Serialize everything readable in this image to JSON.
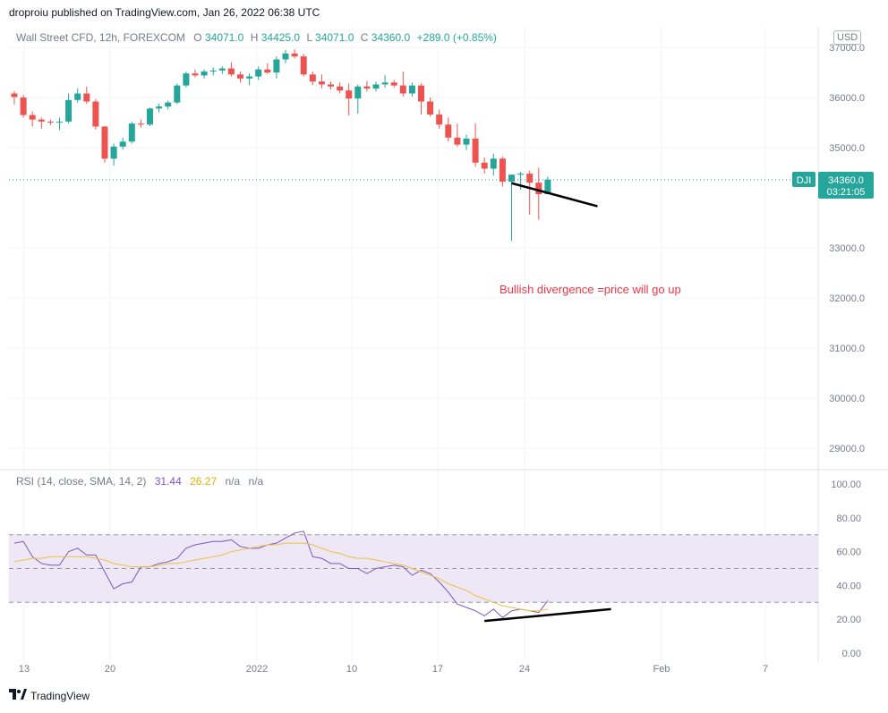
{
  "header": {
    "attribution": "droproiu published on TradingView.com, Jan 26, 2022 06:38 UTC"
  },
  "legend": {
    "symbol": "Wall Street CFD, 12h, FOREXCOM",
    "open_label": "O",
    "open": "34071.0",
    "high_label": "H",
    "high": "34425.0",
    "low_label": "L",
    "low": "34071.0",
    "close_label": "C",
    "close": "34360.0",
    "change": "+289.0 (+0.85%)"
  },
  "currency_badge": "USD",
  "price_tag": {
    "symbol": "DJI",
    "price": "34360.0",
    "countdown": "03:21:05"
  },
  "annotation": "Bullish divergence =price will go up",
  "rsi_legend": {
    "label": "RSI (14, close, SMA, 14, 2)",
    "rsi_value": "31.44",
    "sma_value": "26.27",
    "na1": "n/a",
    "na2": "n/a"
  },
  "footer": {
    "brand": "TradingView"
  },
  "colors": {
    "up": "#26a69a",
    "down": "#ef5350",
    "rsi": "#7e57c2",
    "rsi_sma": "#f0c040",
    "rsi_band": "#ede7f6",
    "annotation": "#f23645",
    "grid": "#f0f3fa"
  },
  "chart_data": [
    {
      "type": "candlestick",
      "title": "Wall Street CFD, 12h, FOREXCOM",
      "x_ticks": [
        "13",
        "20",
        "2022",
        "10",
        "17",
        "24",
        "Feb",
        "7"
      ],
      "y_ticks": [
        "37000.0",
        "36000.0",
        "35000.0",
        "33000.0",
        "32000.0",
        "31000.0",
        "30000.0",
        "29000.0"
      ],
      "ylim": [
        28400,
        37400
      ],
      "last_price": 34360.0,
      "candles": [
        {
          "o": 36080,
          "h": 36130,
          "l": 35860,
          "c": 36010
        },
        {
          "o": 36000,
          "h": 36050,
          "l": 35600,
          "c": 35650
        },
        {
          "o": 35650,
          "h": 35720,
          "l": 35420,
          "c": 35560
        },
        {
          "o": 35560,
          "h": 35600,
          "l": 35380,
          "c": 35520
        },
        {
          "o": 35520,
          "h": 35560,
          "l": 35450,
          "c": 35510
        },
        {
          "o": 35510,
          "h": 35600,
          "l": 35350,
          "c": 35520
        },
        {
          "o": 35520,
          "h": 36080,
          "l": 35480,
          "c": 35950
        },
        {
          "o": 35950,
          "h": 36180,
          "l": 35900,
          "c": 36080
        },
        {
          "o": 36080,
          "h": 36220,
          "l": 35870,
          "c": 35920
        },
        {
          "o": 35920,
          "h": 35970,
          "l": 35360,
          "c": 35420
        },
        {
          "o": 35420,
          "h": 35430,
          "l": 34700,
          "c": 34780
        },
        {
          "o": 34780,
          "h": 35080,
          "l": 34640,
          "c": 35020
        },
        {
          "o": 35020,
          "h": 35200,
          "l": 34960,
          "c": 35120
        },
        {
          "o": 35120,
          "h": 35520,
          "l": 35080,
          "c": 35480
        },
        {
          "o": 35480,
          "h": 35560,
          "l": 35400,
          "c": 35460
        },
        {
          "o": 35460,
          "h": 35800,
          "l": 35430,
          "c": 35780
        },
        {
          "o": 35780,
          "h": 35880,
          "l": 35700,
          "c": 35820
        },
        {
          "o": 35820,
          "h": 35940,
          "l": 35760,
          "c": 35900
        },
        {
          "o": 35900,
          "h": 36280,
          "l": 35870,
          "c": 36240
        },
        {
          "o": 36240,
          "h": 36520,
          "l": 36200,
          "c": 36480
        },
        {
          "o": 36480,
          "h": 36560,
          "l": 36400,
          "c": 36440
        },
        {
          "o": 36440,
          "h": 36560,
          "l": 36380,
          "c": 36520
        },
        {
          "o": 36520,
          "h": 36600,
          "l": 36440,
          "c": 36540
        },
        {
          "o": 36540,
          "h": 36620,
          "l": 36470,
          "c": 36580
        },
        {
          "o": 36580,
          "h": 36700,
          "l": 36420,
          "c": 36460
        },
        {
          "o": 36460,
          "h": 36520,
          "l": 36300,
          "c": 36380
        },
        {
          "o": 36380,
          "h": 36480,
          "l": 36250,
          "c": 36420
        },
        {
          "o": 36420,
          "h": 36620,
          "l": 36350,
          "c": 36560
        },
        {
          "o": 36560,
          "h": 36680,
          "l": 36470,
          "c": 36500
        },
        {
          "o": 36500,
          "h": 36820,
          "l": 36380,
          "c": 36760
        },
        {
          "o": 36760,
          "h": 36950,
          "l": 36680,
          "c": 36880
        },
        {
          "o": 36880,
          "h": 36960,
          "l": 36780,
          "c": 36820
        },
        {
          "o": 36820,
          "h": 36870,
          "l": 36420,
          "c": 36460
        },
        {
          "o": 36460,
          "h": 36520,
          "l": 36250,
          "c": 36320
        },
        {
          "o": 36320,
          "h": 36460,
          "l": 36180,
          "c": 36260
        },
        {
          "o": 36260,
          "h": 36320,
          "l": 36160,
          "c": 36220
        },
        {
          "o": 36220,
          "h": 36300,
          "l": 36080,
          "c": 36140
        },
        {
          "o": 36140,
          "h": 36280,
          "l": 35640,
          "c": 35980
        },
        {
          "o": 35980,
          "h": 36260,
          "l": 35680,
          "c": 36220
        },
        {
          "o": 36220,
          "h": 36330,
          "l": 36120,
          "c": 36180
        },
        {
          "o": 36180,
          "h": 36320,
          "l": 36120,
          "c": 36260
        },
        {
          "o": 36260,
          "h": 36450,
          "l": 36200,
          "c": 36300
        },
        {
          "o": 36300,
          "h": 36350,
          "l": 36200,
          "c": 36240
        },
        {
          "o": 36240,
          "h": 36520,
          "l": 36020,
          "c": 36080
        },
        {
          "o": 36080,
          "h": 36300,
          "l": 36020,
          "c": 36240
        },
        {
          "o": 36240,
          "h": 36280,
          "l": 35660,
          "c": 35920
        },
        {
          "o": 35920,
          "h": 36000,
          "l": 35620,
          "c": 35660
        },
        {
          "o": 35660,
          "h": 35760,
          "l": 35380,
          "c": 35460
        },
        {
          "o": 35460,
          "h": 35600,
          "l": 35120,
          "c": 35200
        },
        {
          "o": 35200,
          "h": 35480,
          "l": 35020,
          "c": 35060
        },
        {
          "o": 35060,
          "h": 35260,
          "l": 34950,
          "c": 35180
        },
        {
          "o": 35180,
          "h": 35480,
          "l": 34620,
          "c": 34700
        },
        {
          "o": 34700,
          "h": 34800,
          "l": 34480,
          "c": 34580
        },
        {
          "o": 34580,
          "h": 34880,
          "l": 34440,
          "c": 34780
        },
        {
          "o": 34780,
          "h": 34820,
          "l": 34220,
          "c": 34320
        },
        {
          "o": 34320,
          "h": 34460,
          "l": 33140,
          "c": 34460
        },
        {
          "o": 34460,
          "h": 34520,
          "l": 34160,
          "c": 34480
        },
        {
          "o": 34480,
          "h": 34540,
          "l": 33660,
          "c": 34300
        },
        {
          "o": 34300,
          "h": 34600,
          "l": 33560,
          "c": 34071
        },
        {
          "o": 34071,
          "h": 34425,
          "l": 34071,
          "c": 34360
        }
      ],
      "trendline": {
        "from": {
          "x_index": 55.0,
          "y": 34290
        },
        "to": {
          "x_index": 64.5,
          "y": 33830
        }
      }
    },
    {
      "type": "line",
      "title": "RSI (14, close, SMA, 14, 2)",
      "y_ticks": [
        "100.00",
        "80.00",
        "60.00",
        "40.00",
        "20.00",
        "0.00"
      ],
      "ylim": [
        0,
        100
      ],
      "bands": {
        "upper": 70,
        "middle": 50,
        "lower": 30
      },
      "series": [
        {
          "name": "RSI",
          "values": [
            65,
            66,
            57,
            53,
            52,
            52,
            60,
            62,
            58,
            58,
            48,
            38,
            41,
            42,
            51,
            51,
            53,
            54,
            56,
            62,
            64,
            65,
            66,
            66,
            67,
            63,
            62,
            62,
            64,
            65,
            68,
            71,
            72,
            57,
            56,
            53,
            53,
            50,
            50,
            47,
            50,
            51,
            52,
            51,
            46,
            49,
            47,
            42,
            36,
            29,
            27,
            25,
            22,
            26,
            21,
            25,
            26,
            25,
            24,
            31
          ]
        },
        {
          "name": "SMA",
          "values": [
            54,
            55,
            56,
            56,
            57,
            57,
            57,
            57,
            57,
            56,
            55,
            53,
            52,
            51,
            51,
            51,
            52,
            53,
            53,
            54,
            55,
            56,
            57,
            58,
            60,
            61,
            62,
            63,
            64,
            64,
            65,
            65,
            65,
            64,
            62,
            60,
            59,
            57,
            56,
            56,
            55,
            54,
            53,
            52,
            50,
            48,
            46,
            44,
            41,
            39,
            37,
            34,
            32,
            30,
            28,
            27,
            26,
            25,
            25,
            26
          ]
        }
      ],
      "trendline": {
        "from": {
          "x_index": 52.0,
          "y": 19
        },
        "to": {
          "x_index": 66.0,
          "y": 26
        }
      }
    }
  ]
}
